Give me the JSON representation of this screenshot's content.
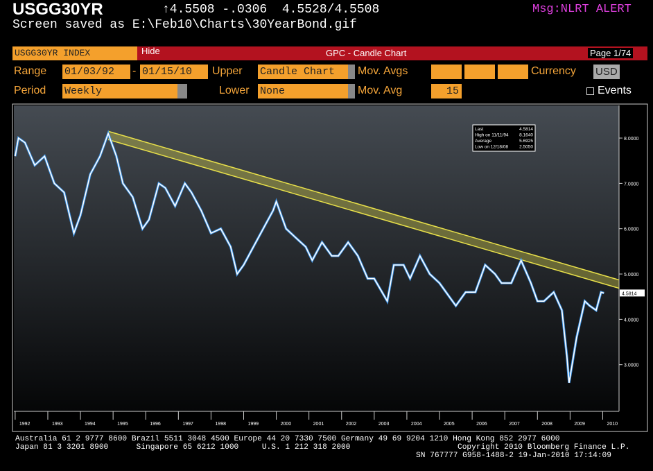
{
  "header": {
    "ticker": "USGG30YR",
    "quote": "↑4.5508 -.0306  4.5528/4.5508",
    "alert": "Msg:NLRT ALERT",
    "saved": "Screen saved as E:\\Feb10\\Charts\\30YearBond.gif"
  },
  "toolbar": {
    "security": "USGG30YR INDEX",
    "hide": "Hide",
    "function": "GPC - Candle Chart",
    "page": "Page 1/74"
  },
  "row1": {
    "range_label": "Range",
    "start": "01/03/92",
    "dash": "-",
    "end": "01/15/10",
    "upper_label": "Upper",
    "upper": "Candle Chart",
    "mov_avgs_label": "Mov. Avgs",
    "currency_label": "Currency",
    "currency": "USD"
  },
  "row2": {
    "period_label": "Period",
    "period": "Weekly",
    "lower_label": "Lower",
    "lower": "None",
    "mov_avg_label": "Mov. Avg",
    "mov_avg": "15",
    "events": "Events"
  },
  "stats_box": {
    "rows": [
      [
        "Last",
        "4.5814"
      ],
      [
        "High on 11/11/94",
        "8.1640"
      ],
      [
        "Average",
        "5.6925"
      ],
      [
        "Low on 12/18/08",
        "2.5050"
      ]
    ]
  },
  "chart_data": {
    "type": "line",
    "color": "#ffffff",
    "x": [
      1992.0,
      1992.1,
      1992.3,
      1992.6,
      1992.9,
      1993.2,
      1993.5,
      1993.8,
      1994.0,
      1994.3,
      1994.6,
      1994.85,
      1995.1,
      1995.3,
      1995.6,
      1995.9,
      1996.1,
      1996.4,
      1996.6,
      1996.9,
      1997.2,
      1997.4,
      1997.7,
      1998.0,
      1998.3,
      1998.6,
      1998.8,
      1999.0,
      1999.3,
      1999.6,
      1999.9,
      2000.0,
      2000.3,
      2000.6,
      2000.9,
      2001.1,
      2001.4,
      2001.7,
      2001.9,
      2002.2,
      2002.5,
      2002.8,
      2003.0,
      2003.4,
      2003.6,
      2003.9,
      2004.1,
      2004.4,
      2004.7,
      2005.0,
      2005.3,
      2005.5,
      2005.8,
      2006.1,
      2006.4,
      2006.7,
      2006.9,
      2007.2,
      2007.5,
      2007.8,
      2008.0,
      2008.2,
      2008.5,
      2008.75,
      2008.9,
      2008.97,
      2009.2,
      2009.45,
      2009.6,
      2009.8,
      2009.95,
      2010.04
    ],
    "values": [
      7.6,
      8.0,
      7.9,
      7.4,
      7.6,
      7.0,
      6.8,
      5.9,
      6.3,
      7.2,
      7.6,
      8.1,
      7.6,
      7.0,
      6.7,
      6.0,
      6.2,
      7.0,
      6.9,
      6.5,
      7.0,
      6.8,
      6.4,
      5.9,
      6.0,
      5.6,
      5.0,
      5.2,
      5.6,
      6.0,
      6.4,
      6.6,
      6.0,
      5.8,
      5.6,
      5.3,
      5.7,
      5.4,
      5.4,
      5.7,
      5.4,
      4.9,
      4.9,
      4.4,
      5.2,
      5.2,
      4.9,
      5.4,
      5.0,
      4.8,
      4.5,
      4.3,
      4.6,
      4.6,
      5.2,
      5.0,
      4.8,
      4.8,
      5.3,
      4.8,
      4.4,
      4.4,
      4.6,
      4.2,
      3.2,
      2.6,
      3.6,
      4.4,
      4.3,
      4.2,
      4.6,
      4.58
    ],
    "xlim": [
      1991.96,
      2010.5
    ],
    "ylim": [
      1.97,
      8.72
    ],
    "xticks": [
      1992,
      1993,
      1994,
      1995,
      1996,
      1997,
      1998,
      1999,
      2000,
      2001,
      2002,
      2003,
      2004,
      2005,
      2006,
      2007,
      2008,
      2009,
      2010
    ],
    "yticks": [
      {
        "value": 3,
        "label": "3.0000"
      },
      {
        "value": 4,
        "label": "4.0000"
      },
      {
        "value": 5,
        "label": "5.0000"
      },
      {
        "value": 6,
        "label": "6.0000"
      },
      {
        "value": 7,
        "label": "7.0000"
      },
      {
        "value": 8,
        "label": "8.0000"
      }
    ],
    "last_value": 4.5814,
    "trendline": {
      "x": [
        1994.85,
        2010.5
      ],
      "y": [
        8.15,
        4.87
      ],
      "color": "#e8e04a"
    }
  },
  "footer": {
    "line1": "Australia 61 2 9777 8600 Brazil 5511 3048 4500 Europe 44 20 7330 7500 Germany 49 69 9204 1210 Hong Kong 852 2977 6000",
    "line2a": "Japan 81 3 3201 8900      Singapore 65 6212 1000     U.S. 1 212 318 2000",
    "line2b": "Copyright 2010 Bloomberg Finance L.P.",
    "line3": "SN 767777 G958-1488-2 19-Jan-2010 17:14:09"
  }
}
